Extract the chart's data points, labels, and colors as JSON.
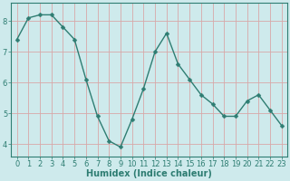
{
  "x": [
    0,
    1,
    2,
    3,
    4,
    5,
    6,
    7,
    8,
    9,
    10,
    11,
    12,
    13,
    14,
    15,
    16,
    17,
    18,
    19,
    20,
    21,
    22,
    23
  ],
  "y": [
    7.4,
    8.1,
    8.2,
    8.2,
    7.8,
    7.4,
    6.1,
    4.9,
    4.1,
    3.9,
    4.8,
    5.8,
    7.0,
    7.6,
    6.6,
    6.1,
    5.6,
    5.3,
    4.9,
    4.9,
    5.4,
    5.6,
    5.1,
    4.6
  ],
  "line_color": "#2e7d72",
  "marker": "D",
  "marker_size": 2.5,
  "linewidth": 1.0,
  "bg_color": "#ceeaec",
  "grid_color": "#d8a8a8",
  "tick_color": "#2e7d72",
  "xlabel": "Humidex (Indice chaleur)",
  "xlabel_fontsize": 7,
  "xlabel_color": "#2e7d72",
  "ylabel_ticks": [
    4,
    5,
    6,
    7,
    8
  ],
  "xlim": [
    -0.5,
    23.5
  ],
  "ylim": [
    3.6,
    8.6
  ],
  "tick_fontsize": 6,
  "spine_color": "#2e7d72"
}
